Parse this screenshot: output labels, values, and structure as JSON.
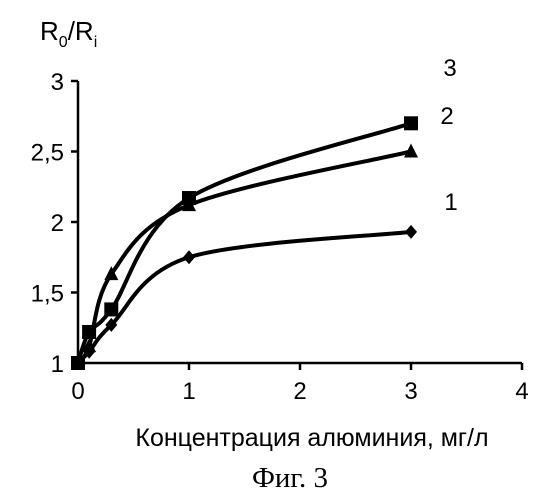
{
  "chart_data": {
    "type": "line",
    "title": "",
    "caption": "Фиг. 3",
    "xlabel": "Концентрация алюминия, мг/л",
    "ylabel": {
      "main": "R",
      "sub1": "0",
      "slash": "/R",
      "sub2": "i"
    },
    "xlim": [
      0,
      4
    ],
    "ylim": [
      1,
      3
    ],
    "x_ticks": [
      0,
      1,
      2,
      3,
      4
    ],
    "x_tick_labels": [
      "0",
      "1",
      "2",
      "3",
      "4"
    ],
    "y_ticks": [
      1,
      1.5,
      2,
      2.5,
      3
    ],
    "y_tick_labels": [
      "1",
      "1,5",
      "2",
      "2,5",
      "3"
    ],
    "grid": false,
    "series": [
      {
        "name": "1",
        "marker": "diamond",
        "x": [
          0,
          0.1,
          0.3,
          1,
          3
        ],
        "y": [
          1.0,
          1.08,
          1.27,
          1.75,
          1.93
        ]
      },
      {
        "name": "2",
        "marker": "square",
        "x": [
          0,
          0.1,
          0.3,
          1,
          3
        ],
        "y": [
          1.0,
          1.22,
          1.38,
          2.17,
          2.7
        ]
      },
      {
        "name": "3",
        "marker": "triangle",
        "x": [
          0,
          0.1,
          0.3,
          1,
          3
        ],
        "y": [
          1.0,
          1.12,
          1.63,
          2.12,
          2.5
        ]
      }
    ]
  }
}
